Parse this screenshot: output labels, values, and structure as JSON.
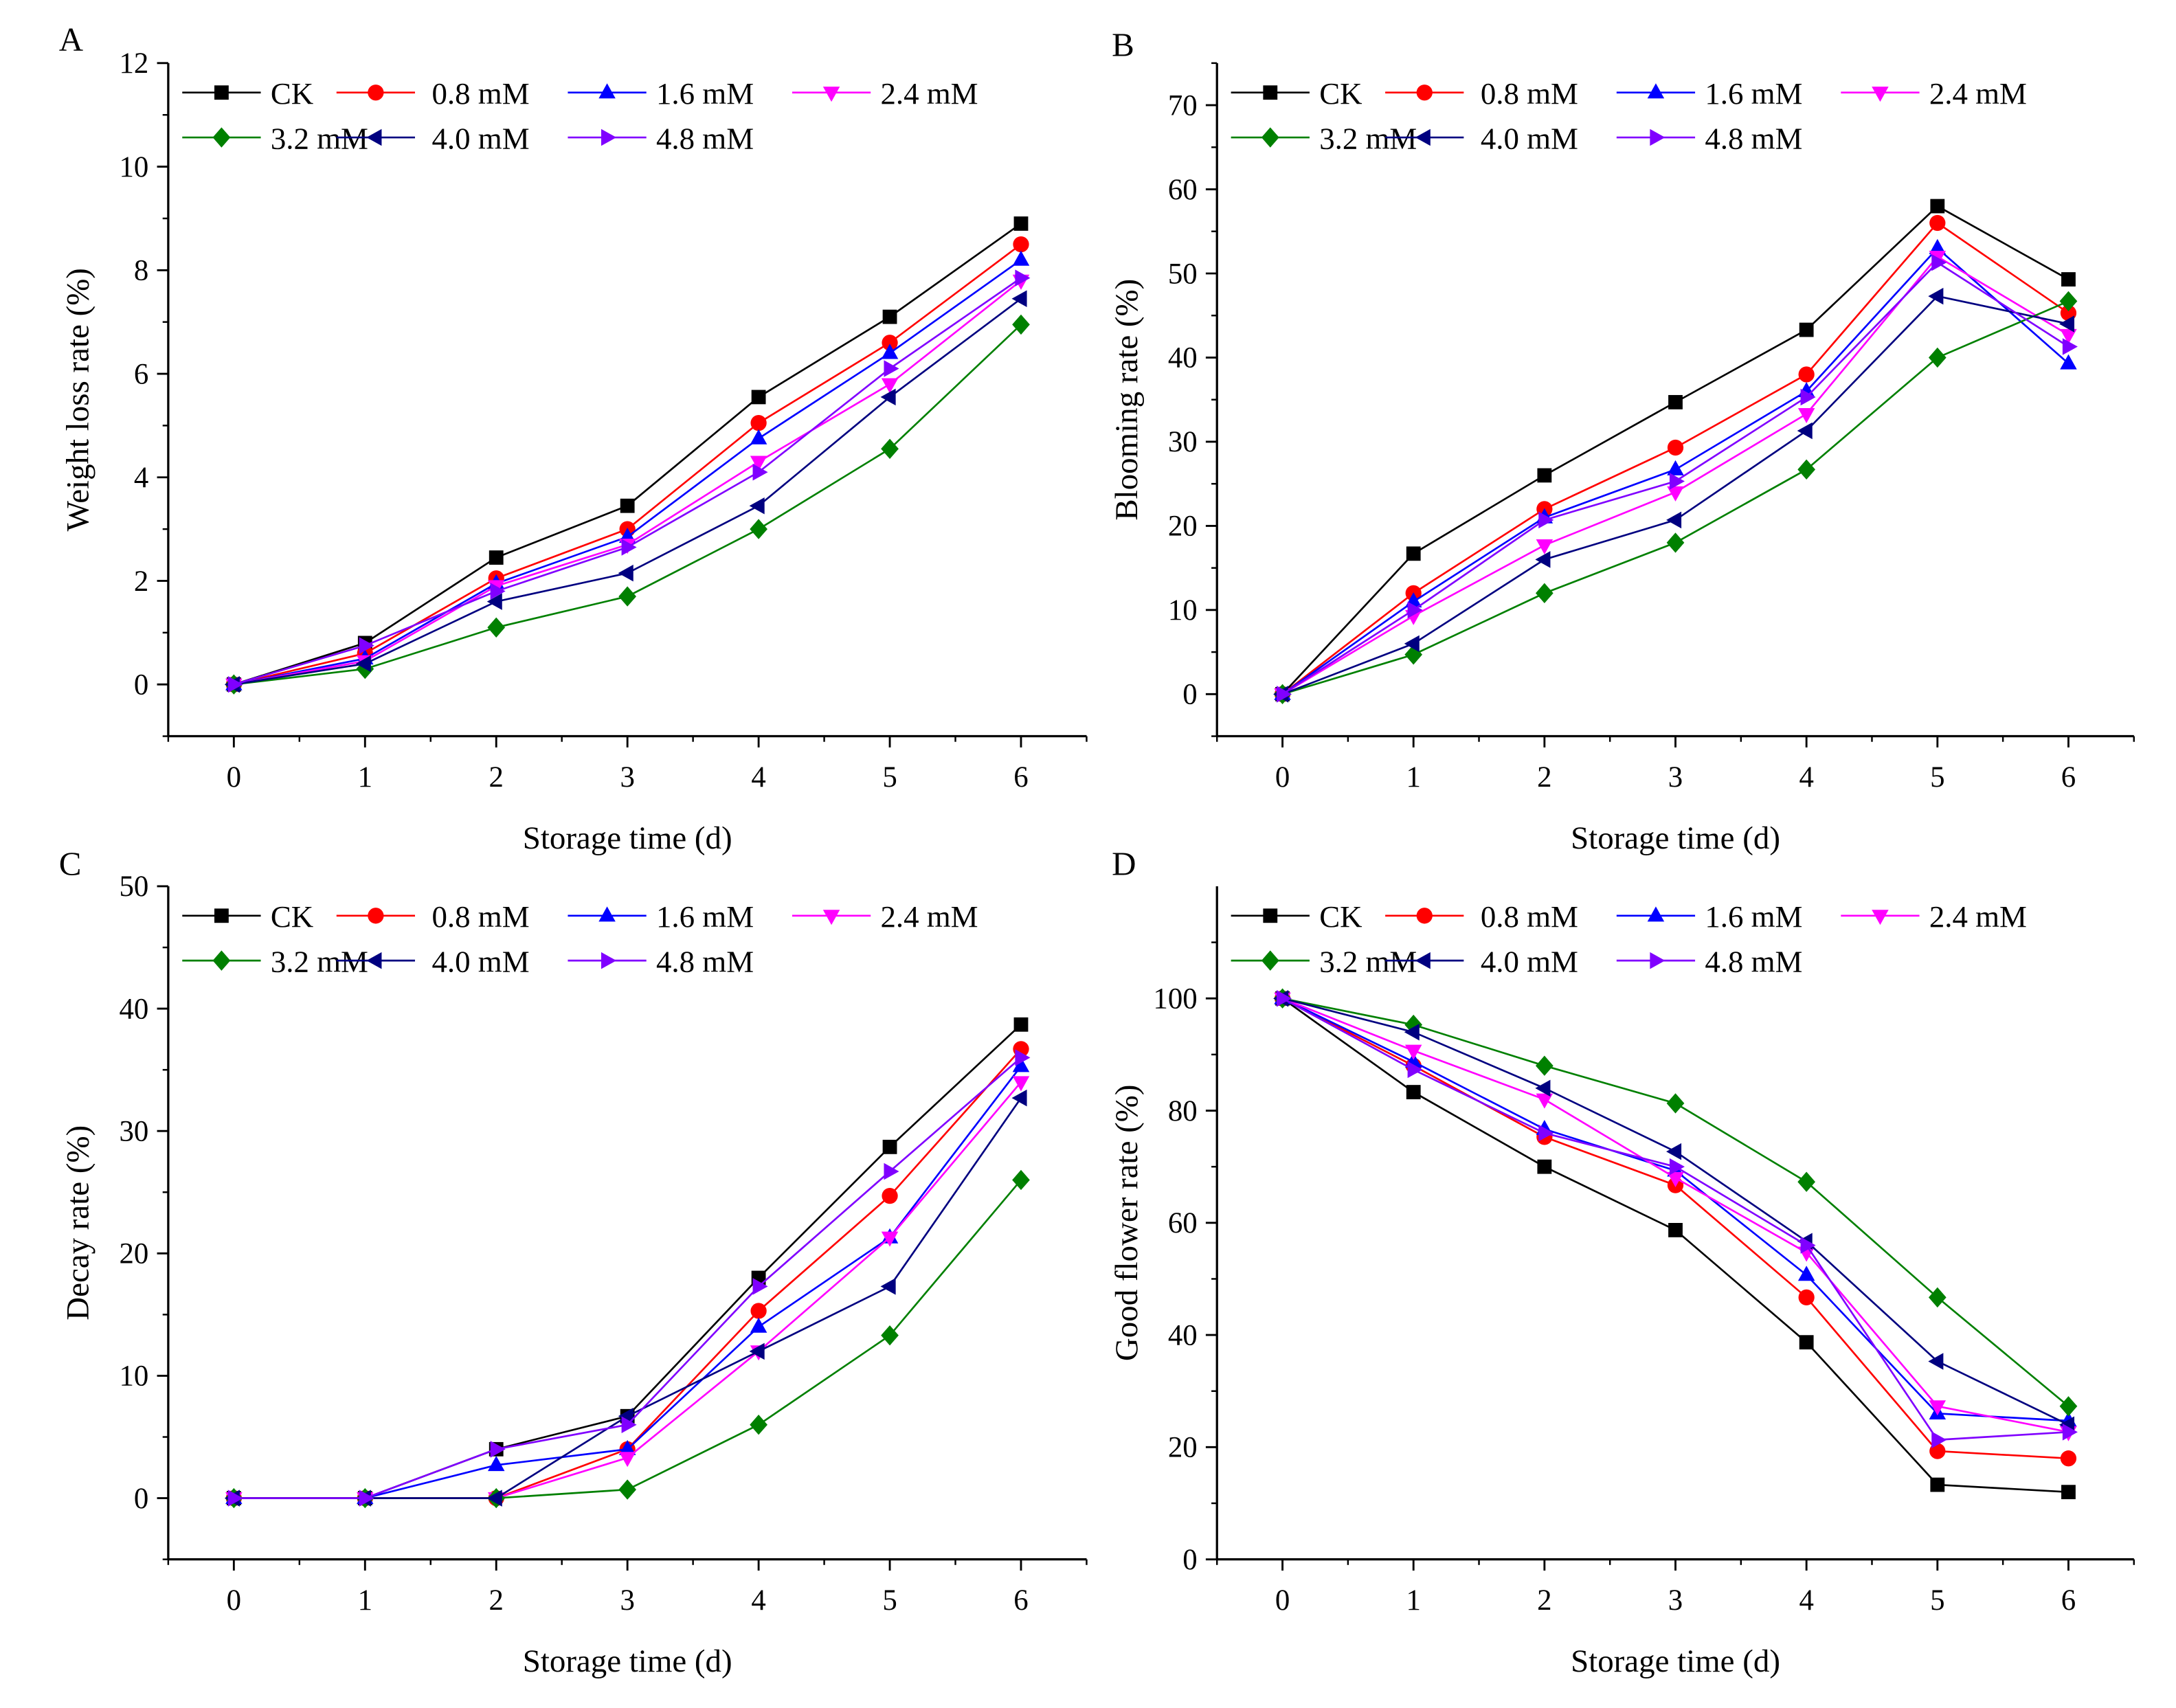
{
  "series_style": [
    {
      "name": "CK",
      "color": "#000000",
      "marker": "square"
    },
    {
      "name": "0.8 mM",
      "color": "#ff0000",
      "marker": "circle"
    },
    {
      "name": "1.6 mM",
      "color": "#0000ff",
      "marker": "triangle-up"
    },
    {
      "name": "2.4 mM",
      "color": "#ff00ff",
      "marker": "triangle-down"
    },
    {
      "name": "3.2 mM",
      "color": "#008000",
      "marker": "diamond"
    },
    {
      "name": "4.0 mM",
      "color": "#000080",
      "marker": "triangle-left"
    },
    {
      "name": "4.8 mM",
      "color": "#8000ff",
      "marker": "triangle-right"
    }
  ],
  "chart_data": [
    {
      "panel": "A",
      "type": "line",
      "xlabel": "Storage time (d)",
      "ylabel": "Weight loss rate (%)",
      "x": [
        0,
        1,
        2,
        3,
        4,
        5,
        6
      ],
      "xlim": [
        -0.5,
        6.5
      ],
      "ylim": [
        -1,
        12
      ],
      "xticks": [
        0,
        1,
        2,
        3,
        4,
        5,
        6
      ],
      "yticks": [
        0,
        2,
        4,
        6,
        8,
        10,
        12
      ],
      "legend": "top-left",
      "grid": false,
      "series": [
        {
          "name": "CK",
          "values": [
            0,
            0.8,
            2.45,
            3.45,
            5.55,
            7.1,
            8.9
          ]
        },
        {
          "name": "0.8 mM",
          "values": [
            0,
            0.6,
            2.05,
            3.0,
            5.05,
            6.6,
            8.5
          ]
        },
        {
          "name": "1.6 mM",
          "values": [
            0,
            0.5,
            1.95,
            2.85,
            4.75,
            6.4,
            8.2
          ]
        },
        {
          "name": "2.4 mM",
          "values": [
            0,
            0.45,
            1.9,
            2.7,
            4.3,
            5.8,
            7.8
          ]
        },
        {
          "name": "3.2 mM",
          "values": [
            0,
            0.3,
            1.1,
            1.7,
            3.0,
            4.55,
            6.95
          ]
        },
        {
          "name": "4.0 mM",
          "values": [
            0,
            0.4,
            1.6,
            2.15,
            3.45,
            5.55,
            7.45
          ]
        },
        {
          "name": "4.8 mM",
          "values": [
            0,
            0.75,
            1.8,
            2.65,
            4.1,
            6.1,
            7.85
          ]
        }
      ]
    },
    {
      "panel": "B",
      "type": "line",
      "xlabel": "Storage time (d)",
      "ylabel": "Blooming rate (%)",
      "x": [
        0,
        1,
        2,
        3,
        4,
        5,
        6
      ],
      "xlim": [
        -0.5,
        6.5
      ],
      "ylim": [
        -5,
        75
      ],
      "xticks": [
        0,
        1,
        2,
        3,
        4,
        5,
        6
      ],
      "yticks": [
        0,
        10,
        20,
        30,
        40,
        50,
        60,
        70
      ],
      "legend": "top-left",
      "grid": false,
      "series": [
        {
          "name": "CK",
          "values": [
            0,
            16.7,
            26,
            34.7,
            43.3,
            58,
            49.3
          ]
        },
        {
          "name": "0.8 mM",
          "values": [
            0,
            12,
            22,
            29.3,
            38,
            56,
            45.3
          ]
        },
        {
          "name": "1.6 mM",
          "values": [
            0,
            11,
            21,
            26.7,
            36,
            53,
            39.3
          ]
        },
        {
          "name": "2.4 mM",
          "values": [
            0,
            9.3,
            17.7,
            24,
            33.3,
            52,
            42.7
          ]
        },
        {
          "name": "3.2 mM",
          "values": [
            0,
            4.7,
            12,
            18,
            26.7,
            40,
            46.7
          ]
        },
        {
          "name": "4.0 mM",
          "values": [
            0,
            6,
            16,
            20.7,
            31.3,
            47.3,
            44
          ]
        },
        {
          "name": "4.8 mM",
          "values": [
            0,
            10,
            20.7,
            25.3,
            35.3,
            51.3,
            41.3
          ]
        }
      ]
    },
    {
      "panel": "C",
      "type": "line",
      "xlabel": "Storage time (d)",
      "ylabel": "Decay rate (%)",
      "x": [
        0,
        1,
        2,
        3,
        4,
        5,
        6
      ],
      "xlim": [
        -0.5,
        6.5
      ],
      "ylim": [
        -5,
        50
      ],
      "xticks": [
        0,
        1,
        2,
        3,
        4,
        5,
        6
      ],
      "yticks": [
        0,
        10,
        20,
        30,
        40,
        50
      ],
      "legend": "top-left",
      "grid": false,
      "series": [
        {
          "name": "CK",
          "values": [
            0,
            0,
            4,
            6.7,
            18,
            28.7,
            38.7
          ]
        },
        {
          "name": "0.8 mM",
          "values": [
            0,
            0,
            0,
            4,
            15.3,
            24.7,
            36.7
          ]
        },
        {
          "name": "1.6 mM",
          "values": [
            0,
            0,
            2.7,
            4,
            14,
            21.3,
            35.3
          ]
        },
        {
          "name": "2.4 mM",
          "values": [
            0,
            0,
            0,
            3.3,
            12,
            21.3,
            34
          ]
        },
        {
          "name": "3.2 mM",
          "values": [
            0,
            0,
            0,
            0.7,
            6,
            13.3,
            26
          ]
        },
        {
          "name": "4.0 mM",
          "values": [
            0,
            0,
            0,
            6.7,
            12,
            17.3,
            32.7
          ]
        },
        {
          "name": "4.8 mM",
          "values": [
            0,
            0,
            4,
            6,
            17.3,
            26.7,
            36
          ]
        }
      ]
    },
    {
      "panel": "D",
      "type": "line",
      "xlabel": "Storage time (d)",
      "ylabel": "Good flower rate (%)",
      "x": [
        0,
        1,
        2,
        3,
        4,
        5,
        6
      ],
      "xlim": [
        -0.5,
        6.5
      ],
      "ylim": [
        0,
        120
      ],
      "xticks": [
        0,
        1,
        2,
        3,
        4,
        5,
        6
      ],
      "yticks": [
        0,
        20,
        40,
        60,
        80,
        100
      ],
      "legend": "top-left",
      "grid": false,
      "series": [
        {
          "name": "CK",
          "values": [
            100,
            83.3,
            70,
            58.7,
            38.7,
            13.3,
            12
          ]
        },
        {
          "name": "0.8 mM",
          "values": [
            100,
            88,
            75.3,
            66.7,
            46.7,
            19.3,
            18
          ]
        },
        {
          "name": "1.6 mM",
          "values": [
            100,
            88.7,
            76.7,
            69.3,
            50.7,
            26,
            24.7
          ]
        },
        {
          "name": "2.4 mM",
          "values": [
            100,
            90.7,
            82,
            68,
            54.7,
            27.3,
            22.7
          ]
        },
        {
          "name": "3.2 mM",
          "values": [
            100,
            95.3,
            88,
            81.3,
            67.3,
            46.7,
            27.3
          ]
        },
        {
          "name": "4.0 mM",
          "values": [
            100,
            94,
            84,
            72.7,
            56.7,
            35.3,
            24
          ]
        },
        {
          "name": "4.8 mM",
          "values": [
            100,
            87.3,
            76,
            70,
            56,
            21.3,
            22.7
          ]
        }
      ]
    }
  ]
}
